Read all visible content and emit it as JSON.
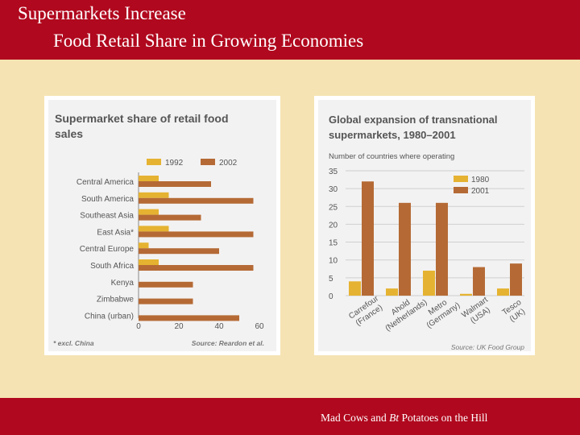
{
  "slide": {
    "title_line1": "Supermarkets Increase",
    "title_line2": "Food Retail Share in Growing Economies",
    "footer_pre": "Mad Cows and ",
    "footer_em": "Bt",
    "footer_post": " Potatoes on the Hill"
  },
  "colors": {
    "header": "#b0081e",
    "background": "#f5e3b3",
    "bar_early": "#e5b331",
    "bar_late": "#b56a35",
    "chart_text": "#555555"
  },
  "chart_data": [
    {
      "type": "bar",
      "orientation": "horizontal",
      "title": "Supermarket share of retail food sales",
      "categories": [
        "Central America",
        "South America",
        "Southeast Asia",
        "East Asia*",
        "Central Europe",
        "South Africa",
        "Kenya",
        "Zimbabwe",
        "China (urban)"
      ],
      "series": [
        {
          "name": "1992",
          "values": [
            10,
            15,
            10,
            15,
            5,
            10,
            0,
            0,
            0
          ]
        },
        {
          "name": "2002",
          "values": [
            36,
            57,
            31,
            57,
            40,
            57,
            27,
            27,
            50
          ]
        }
      ],
      "xticks": [
        "0",
        "20",
        "40",
        "60"
      ],
      "xlim": [
        0,
        60
      ],
      "legend": "top",
      "footnote": "* excl. China",
      "source": "Source: Reardon et al."
    },
    {
      "type": "bar",
      "orientation": "vertical",
      "title_line1": "Global expansion of transnational",
      "title_line2": "supermarkets, 1980–2001",
      "subtitle": "Number of countries where operating",
      "categories": [
        "Carrefour (France)",
        "Ahold (Netherlands)",
        "Metro (Germany)",
        "Walmart (USA)",
        "Tesco (UK)"
      ],
      "category_labels": [
        {
          "line1": "Carrefour",
          "line2": "(France)"
        },
        {
          "line1": "Ahold",
          "line2": "(Netherlands)"
        },
        {
          "line1": "Metro",
          "line2": "(Germany)"
        },
        {
          "line1": "Walmart",
          "line2": "(USA)"
        },
        {
          "line1": "Tesco",
          "line2": "(UK)"
        }
      ],
      "series": [
        {
          "name": "1980",
          "values": [
            4,
            2,
            7,
            0.5,
            2
          ]
        },
        {
          "name": "2001",
          "values": [
            32,
            26,
            26,
            8,
            9
          ]
        }
      ],
      "yticks": [
        "35",
        "30",
        "25",
        "20",
        "15",
        "10",
        "5",
        "0"
      ],
      "ylim": [
        0,
        35
      ],
      "grid": true,
      "legend": "top-right",
      "source": "Source: UK Food Group"
    }
  ]
}
